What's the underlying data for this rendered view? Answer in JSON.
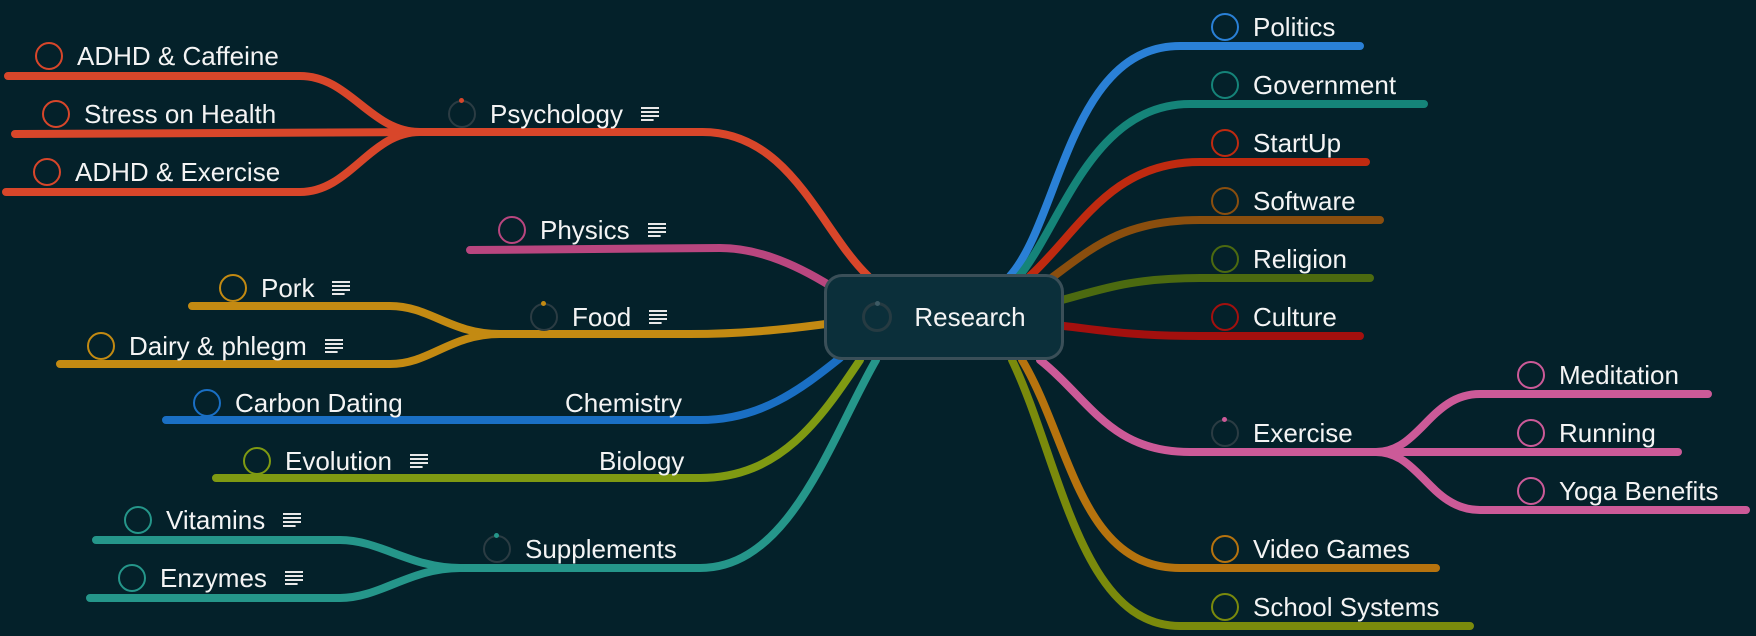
{
  "root": {
    "label": "Research"
  },
  "nodes": {
    "psychology": {
      "label": "Psychology",
      "color": "#d8462a"
    },
    "adhd_caffeine": {
      "label": "ADHD & Caffeine",
      "color": "#d8462a"
    },
    "stress_health": {
      "label": "Stress on Health",
      "color": "#d8462a"
    },
    "adhd_exercise": {
      "label": "ADHD & Exercise",
      "color": "#d8462a"
    },
    "physics": {
      "label": "Physics",
      "color": "#b9467f"
    },
    "food": {
      "label": "Food",
      "color": "#c38a12"
    },
    "pork": {
      "label": "Pork",
      "color": "#c38a12"
    },
    "dairy": {
      "label": "Dairy & phlegm",
      "color": "#c38a12"
    },
    "chemistry": {
      "label": "Chemistry",
      "color": "#1a6fc4"
    },
    "carbon": {
      "label": "Carbon Dating",
      "color": "#1a6fc4"
    },
    "biology": {
      "label": "Biology",
      "color": "#7f9a12"
    },
    "evolution": {
      "label": "Evolution",
      "color": "#7f9a12"
    },
    "supplements": {
      "label": "Supplements",
      "color": "#25968a"
    },
    "vitamins": {
      "label": "Vitamins",
      "color": "#25968a"
    },
    "enzymes": {
      "label": "Enzymes",
      "color": "#25968a"
    },
    "politics": {
      "label": "Politics",
      "color": "#2a80d6"
    },
    "government": {
      "label": "Government",
      "color": "#158479"
    },
    "startup": {
      "label": "StartUp",
      "color": "#bf2a10"
    },
    "software": {
      "label": "Software",
      "color": "#8a4e0e"
    },
    "religion": {
      "label": "Religion",
      "color": "#4c6a10"
    },
    "culture": {
      "label": "Culture",
      "color": "#a3100e"
    },
    "exercise": {
      "label": "Exercise",
      "color": "#cc5a98"
    },
    "meditation": {
      "label": "Meditation",
      "color": "#cc5a98"
    },
    "running": {
      "label": "Running",
      "color": "#cc5a98"
    },
    "yoga": {
      "label": "Yoga Benefits",
      "color": "#cc5a98"
    },
    "video_games": {
      "label": "Video Games",
      "color": "#b6730e"
    },
    "school": {
      "label": "School Systems",
      "color": "#7a8a0c"
    }
  }
}
